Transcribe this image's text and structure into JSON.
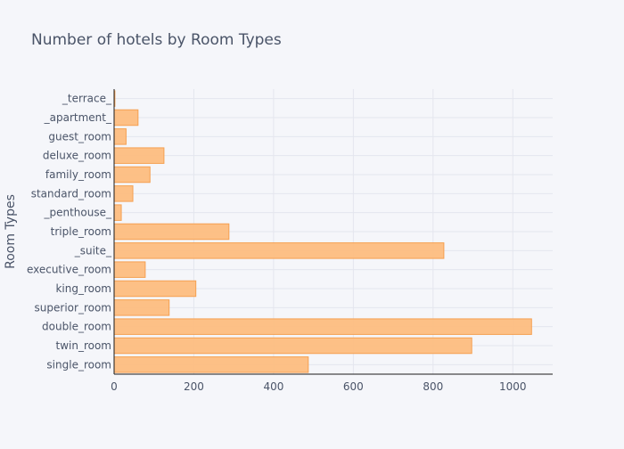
{
  "chart_data": {
    "type": "bar",
    "orientation": "horizontal",
    "title": "Number of hotels by Room Types",
    "xlabel": "",
    "ylabel": "Room Types",
    "xlim": [
      0,
      1100
    ],
    "x_ticks": [
      0,
      200,
      400,
      600,
      800,
      1000
    ],
    "grid": true,
    "legend": "none",
    "bar_fill": "#fdbd7f",
    "bar_stroke": "#f5a051",
    "categories": [
      "_terrace_",
      "_apartment_",
      "guest_room",
      "deluxe_room",
      "family_room",
      "standard_room",
      "_penthouse_",
      "triple_room",
      "_suite_",
      "executive_room",
      "king_room",
      "superior_room",
      "double_room",
      "twin_room",
      "single_room"
    ],
    "values": [
      2,
      60,
      30,
      125,
      90,
      47,
      18,
      288,
      827,
      78,
      205,
      138,
      1047,
      897,
      487
    ]
  }
}
